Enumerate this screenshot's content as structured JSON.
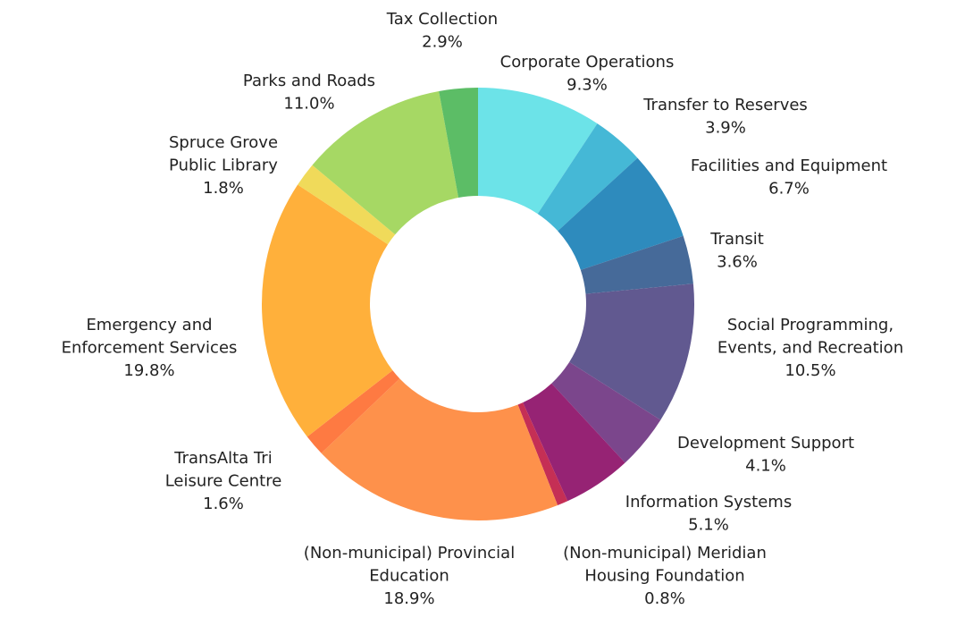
{
  "chart_data": {
    "type": "pie",
    "slices": [
      {
        "label": "Corporate Operations",
        "value": 9.3,
        "value_label": "9.3%",
        "color": "#6ce3e8"
      },
      {
        "label": "Transfer to Reserves",
        "value": 3.9,
        "value_label": "3.9%",
        "color": "#45b8d6"
      },
      {
        "label": "Facilities and Equipment",
        "value": 6.7,
        "value_label": "6.7%",
        "color": "#2e8bbd"
      },
      {
        "label": "Transit",
        "value": 3.6,
        "value_label": "3.6%",
        "color": "#466a99"
      },
      {
        "label": "Social Programming, Events, and Recreation",
        "value": 10.5,
        "value_label": "10.5%",
        "color": "#615990"
      },
      {
        "label": "Development Support",
        "value": 4.1,
        "value_label": "4.1%",
        "color": "#7b468c"
      },
      {
        "label": "Information Systems",
        "value": 5.1,
        "value_label": "5.1%",
        "color": "#962374"
      },
      {
        "label": "(Non-municipal) Meridian Housing Foundation",
        "value": 0.8,
        "value_label": "0.8%",
        "color": "#c52f55"
      },
      {
        "label": "(Non-municipal) Provincial Education",
        "value": 18.9,
        "value_label": "18.9%",
        "color": "#fe914b"
      },
      {
        "label": "TransAlta Tri Leisure Centre",
        "value": 1.6,
        "value_label": "1.6%",
        "color": "#fe7a42"
      },
      {
        "label": "Emergency and Enforcement Services",
        "value": 19.8,
        "value_label": "19.8%",
        "color": "#ffb03b"
      },
      {
        "label": "Spruce Grove Public Library",
        "value": 1.8,
        "value_label": "1.8%",
        "color": "#f0da5a"
      },
      {
        "label": "Parks and Roads",
        "value": 11.0,
        "value_label": "11.0%",
        "color": "#a6d864"
      },
      {
        "label": "Tax Collection",
        "value": 2.9,
        "value_label": "2.9%",
        "color": "#5cbd66"
      }
    ],
    "start": "top, clockwise",
    "hole": "donut",
    "legend": "none (labels beside slices)"
  }
}
